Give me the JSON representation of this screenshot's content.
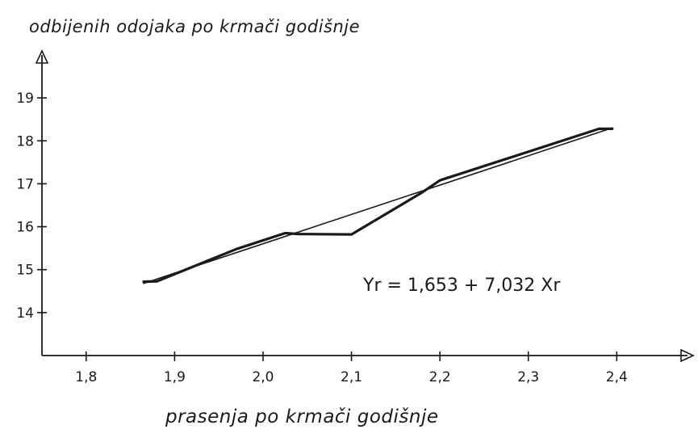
{
  "chart_data": {
    "type": "line",
    "ylabel": "odbijenih odojaka po krmači godišnje",
    "xlabel": "prasenja po krmači godišnje",
    "xlim": [
      1.75,
      2.48
    ],
    "ylim": [
      13.0,
      20.0
    ],
    "x_ticks": [
      "1,8",
      "1,9",
      "2,0",
      "2,1",
      "2,2",
      "2,3",
      "2,4"
    ],
    "x_tick_values": [
      1.8,
      1.9,
      2.0,
      2.1,
      2.2,
      2.3,
      2.4
    ],
    "y_ticks": [
      "14",
      "15",
      "16",
      "17",
      "18",
      "19"
    ],
    "y_tick_values": [
      14,
      15,
      16,
      17,
      18,
      19
    ],
    "series": [
      {
        "style": "bold",
        "x": [
          1.865,
          1.88,
          1.97,
          2.025,
          2.04,
          2.1,
          2.18,
          2.2,
          2.38,
          2.395
        ],
        "y": [
          14.72,
          14.73,
          15.48,
          15.85,
          15.83,
          15.82,
          16.8,
          17.08,
          18.28,
          18.28
        ]
      },
      {
        "style": "thin",
        "x": [
          1.865,
          2.395
        ],
        "y": [
          14.68,
          18.3
        ]
      }
    ],
    "annotation": "Yr = 1,653 + 7,032 Xr"
  }
}
